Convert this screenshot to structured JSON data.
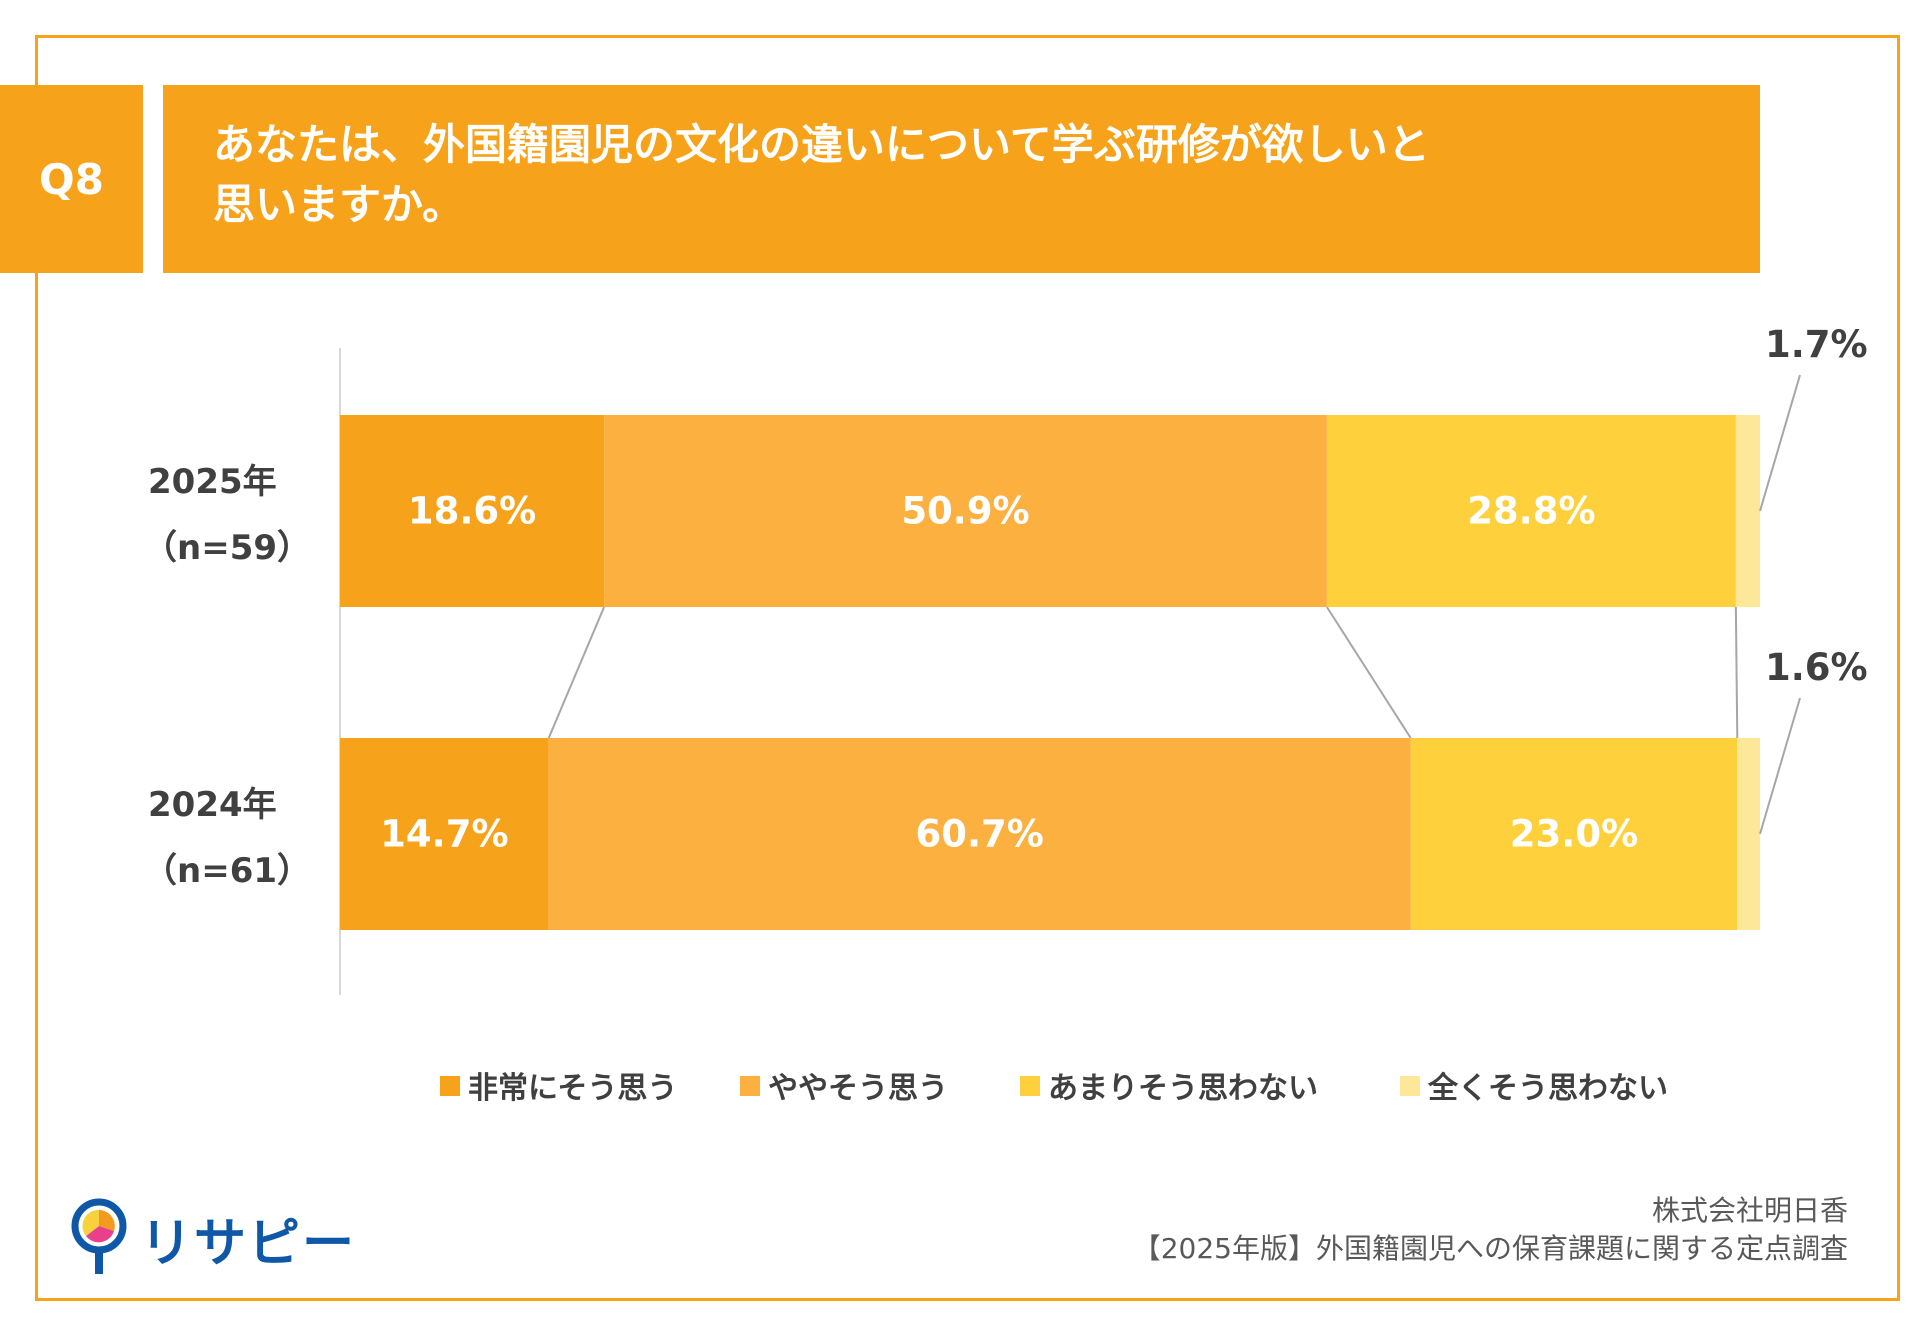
{
  "header": {
    "badge": "Q8",
    "question_line1": "あなたは、外国籍園児の文化の違いについて学ぶ研修が欲しいと",
    "question_line2": "思いますか。"
  },
  "colors": {
    "accent": "#F7A21B",
    "series": [
      "#F7A21B",
      "#FBB040",
      "#FDD03C",
      "#FDE89A"
    ],
    "logo_blue": "#0F58A8"
  },
  "chart_data": {
    "type": "bar",
    "orientation": "horizontal",
    "stacked": "100%",
    "categories": [
      "2025年|（n=59）",
      "2024年|（n=61）"
    ],
    "category_lines": [
      [
        "2025年",
        "（n=59）"
      ],
      [
        "2024年",
        "（n=61）"
      ]
    ],
    "series": [
      {
        "name": "非常にそう思う",
        "values": [
          18.6,
          14.7
        ],
        "labels": [
          "18.6%",
          "14.7%"
        ]
      },
      {
        "name": "ややそう思う",
        "values": [
          50.9,
          60.7
        ],
        "labels": [
          "50.9%",
          "60.7%"
        ]
      },
      {
        "name": "あまりそう思わない",
        "values": [
          28.8,
          23.0
        ],
        "labels": [
          "28.8%",
          "23.0%"
        ]
      },
      {
        "name": "全くそう思わない",
        "values": [
          1.7,
          1.6
        ],
        "labels": [
          "1.7%",
          "1.6%"
        ]
      }
    ],
    "xlim": [
      0,
      100
    ],
    "legend": "bottom",
    "grid": false,
    "series_lines": true
  },
  "footer": {
    "logo_text": "リサピー",
    "source_line1": "株式会社明日香",
    "source_line2": "【2025年版】外国籍園児への保育課題に関する定点調査"
  }
}
